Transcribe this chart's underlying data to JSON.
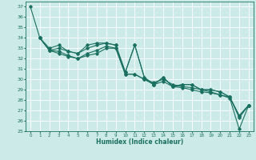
{
  "xlabel": "Humidex (Indice chaleur)",
  "xlim": [
    -0.5,
    23.5
  ],
  "ylim": [
    25,
    37.5
  ],
  "yticks": [
    25,
    26,
    27,
    28,
    29,
    30,
    31,
    32,
    33,
    34,
    35,
    36,
    37
  ],
  "xticks": [
    0,
    1,
    2,
    3,
    4,
    5,
    6,
    7,
    8,
    9,
    10,
    11,
    12,
    13,
    14,
    15,
    16,
    17,
    18,
    19,
    20,
    21,
    22,
    23
  ],
  "bg_color": "#cceae8",
  "grid_color": "#ffffff",
  "line_color": "#1a7060",
  "lines": [
    {
      "x": [
        0,
        1,
        2,
        3,
        4,
        5,
        6,
        7,
        8,
        9,
        10,
        11,
        12,
        13,
        14,
        15,
        16,
        17,
        18,
        19,
        20,
        21,
        22,
        23
      ],
      "y": [
        37,
        34,
        33.0,
        33.3,
        32.7,
        32.5,
        33.3,
        33.5,
        33.5,
        33.3,
        30.7,
        33.3,
        30.2,
        29.5,
        30.2,
        29.3,
        29.5,
        29.5,
        29.0,
        29.0,
        28.8,
        28.3,
        26.5,
        27.5
      ]
    },
    {
      "x": [
        1,
        2,
        3,
        4,
        5,
        6,
        7,
        8,
        9,
        10,
        11,
        12,
        13,
        14,
        15,
        16,
        17,
        18,
        19,
        20,
        21,
        22,
        23
      ],
      "y": [
        34,
        32.8,
        32.5,
        32.2,
        32.0,
        32.3,
        32.5,
        33.0,
        33.0,
        30.5,
        30.5,
        30.0,
        29.5,
        29.8,
        29.3,
        29.2,
        29.0,
        28.8,
        28.7,
        28.5,
        28.2,
        25.2,
        27.5
      ]
    },
    {
      "x": [
        1,
        2,
        3,
        4,
        5,
        6,
        7,
        8,
        9,
        10,
        11,
        12,
        13,
        14,
        15,
        16,
        17,
        18,
        19,
        20,
        21,
        22,
        23
      ],
      "y": [
        34,
        32.8,
        32.7,
        32.3,
        32.0,
        32.5,
        32.8,
        33.2,
        33.0,
        30.5,
        30.5,
        30.0,
        29.7,
        30.0,
        29.5,
        29.3,
        29.2,
        29.0,
        28.8,
        28.5,
        28.3,
        26.3,
        27.5
      ]
    },
    {
      "x": [
        1,
        2,
        3,
        4,
        5,
        6,
        7,
        8,
        9,
        10,
        11,
        12,
        13,
        14,
        15,
        16,
        17,
        18,
        19,
        20,
        21,
        22,
        23
      ],
      "y": [
        34,
        32.8,
        33.0,
        32.7,
        32.5,
        33.0,
        33.3,
        33.5,
        33.3,
        30.7,
        33.3,
        30.2,
        29.5,
        30.2,
        29.3,
        29.5,
        29.5,
        29.0,
        29.0,
        28.8,
        28.3,
        26.5,
        27.5
      ]
    }
  ]
}
